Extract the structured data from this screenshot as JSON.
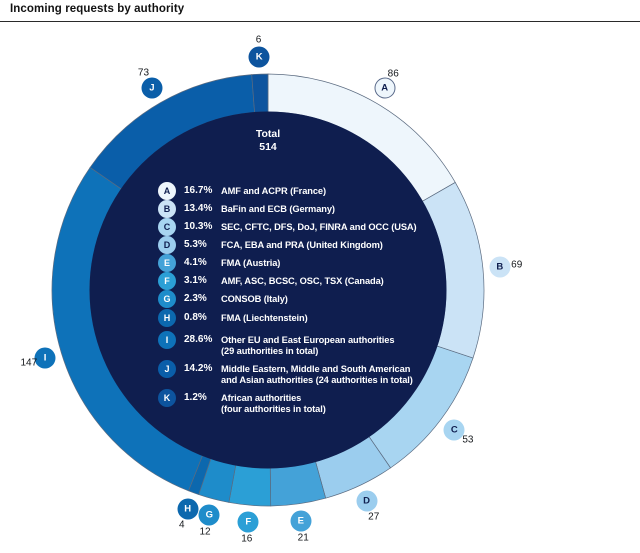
{
  "page": {
    "title": "Incoming requests by authority"
  },
  "chart_data": {
    "type": "donut",
    "title": "Incoming requests by authority",
    "center_label": "Total",
    "center_value": "514",
    "total": 514,
    "legend_position": "center",
    "start_angle_deg": 0,
    "direction": "clockwise",
    "segments": [
      {
        "id": "A",
        "percent": "16.7%",
        "value": 86,
        "label": "AMF and ACPR (France)",
        "color": "#eef6fc",
        "letter_style": "dark"
      },
      {
        "id": "B",
        "percent": "13.4%",
        "value": 69,
        "label": "BaFin and ECB (Germany)",
        "color": "#cbe3f6",
        "letter_style": "dark"
      },
      {
        "id": "C",
        "percent": "10.3%",
        "value": 53,
        "label": "SEC, CFTC, DFS, DoJ, FINRA and OCC (USA)",
        "color": "#a8d5f1",
        "letter_style": "dark"
      },
      {
        "id": "D",
        "percent": "5.3%",
        "value": 27,
        "label": "FCA, EBA and PRA (United Kingdom)",
        "color": "#9bcdee",
        "letter_style": "dark"
      },
      {
        "id": "E",
        "percent": "4.1%",
        "value": 21,
        "label": "FMA (Austria)",
        "color": "#44a2d8",
        "letter_style": "white"
      },
      {
        "id": "F",
        "percent": "3.1%",
        "value": 16,
        "label": "AMF, ASC, BCSC, OSC, TSX (Canada)",
        "color": "#2b9fd6",
        "letter_style": "white"
      },
      {
        "id": "G",
        "percent": "2.3%",
        "value": 12,
        "label": "CONSOB (Italy)",
        "color": "#1e8cca",
        "letter_style": "white"
      },
      {
        "id": "H",
        "percent": "0.8%",
        "value": 4,
        "label": "FMA (Liechtenstein)",
        "color": "#0c68ae",
        "letter_style": "white"
      },
      {
        "id": "I",
        "percent": "28.6%",
        "value": 147,
        "label": "Other EU and East European authorities\n(29 authorities in total)",
        "color": "#0e72b9",
        "letter_style": "white"
      },
      {
        "id": "J",
        "percent": "14.2%",
        "value": 73,
        "label": "Middle Eastern, Middle and South American\nand Asian authorities (24 authorities in total)",
        "color": "#0a5ea9",
        "letter_style": "white"
      },
      {
        "id": "K",
        "percent": "1.2%",
        "value": 6,
        "label": "African authorities\n(four authorities in total)",
        "color": "#0d549e",
        "letter_style": "white"
      }
    ],
    "colors": {
      "hole": "#0f1e4f",
      "segment_stroke": "#5b6b80",
      "dark_letter": "#0f1e4f",
      "white_letter": "#ffffff",
      "count_text": "#15181c"
    }
  }
}
